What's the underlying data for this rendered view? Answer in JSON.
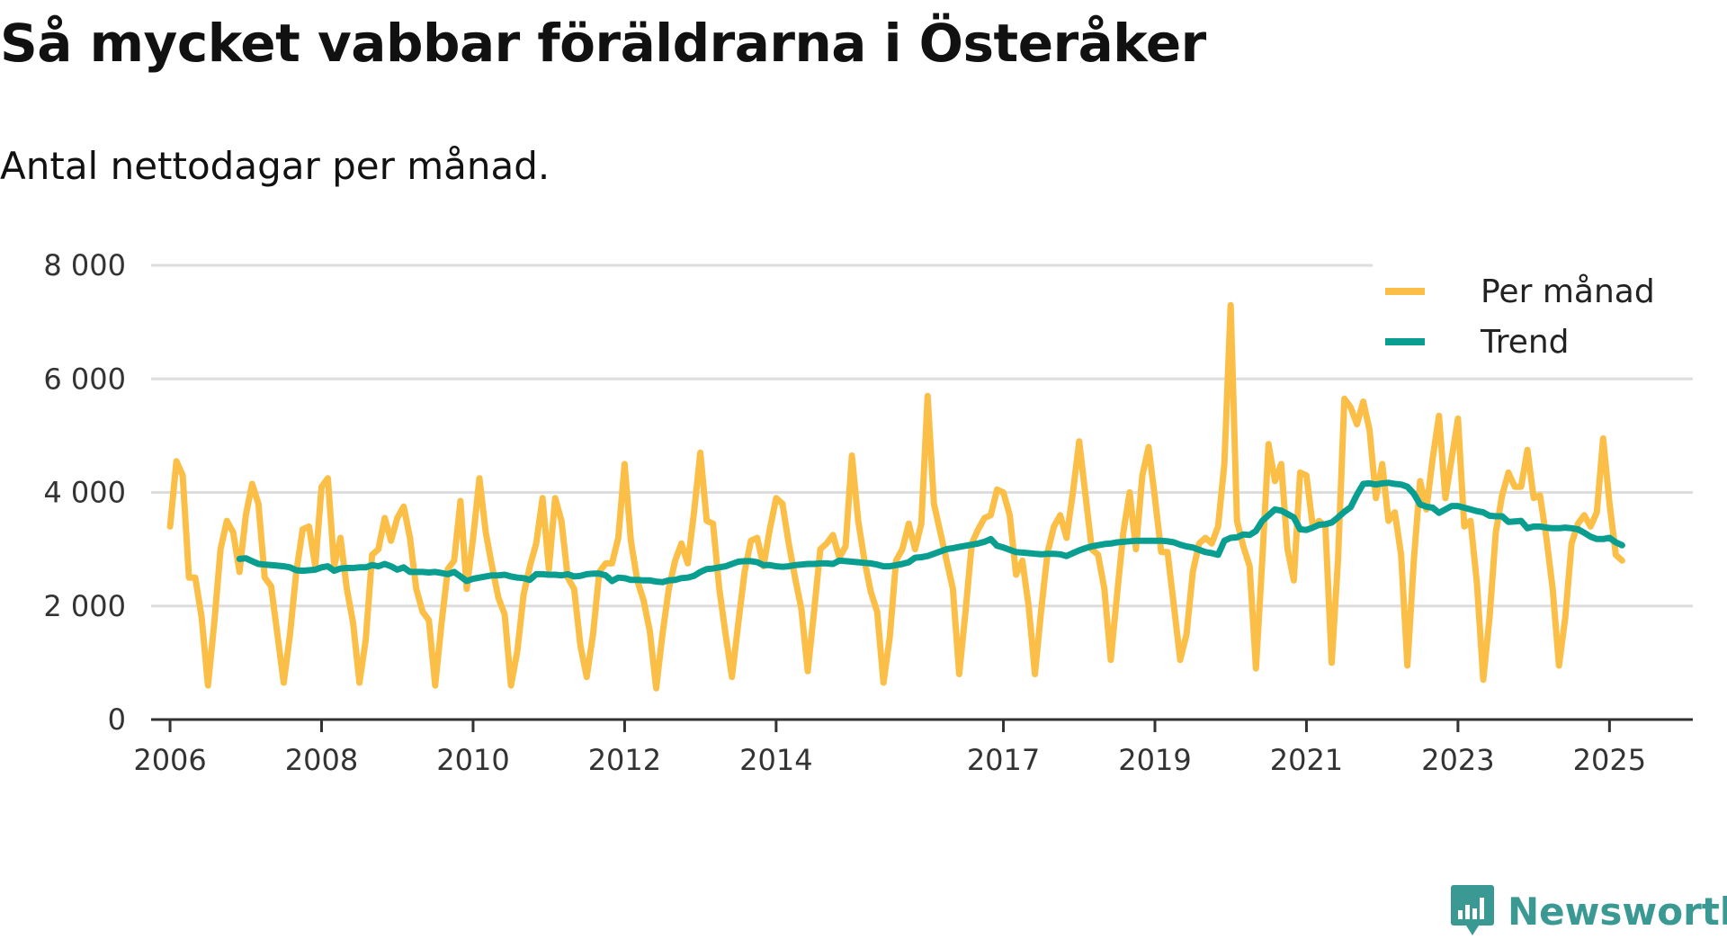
{
  "header": {
    "title": "Så mycket vabbar föräldrarna i Österåker",
    "subtitle": "Antal nettodagar per månad."
  },
  "branding": {
    "name": "Newsworthy",
    "logo_icon": "bar-chart-bubble-icon",
    "color": "#3a9a93"
  },
  "colors": {
    "per_month": "#fbbf47",
    "trend": "#0a9e91",
    "grid": "#dddddd",
    "axis": "#333333"
  },
  "chart_data": {
    "type": "line",
    "title": "Så mycket vabbar föräldrarna i Österåker",
    "subtitle": "Antal nettodagar per månad.",
    "xlabel": "",
    "ylabel": "",
    "x_unit": "year (decimal, monthly points)",
    "xlim": [
      2005.75,
      2026.1
    ],
    "ylim": [
      0,
      8000
    ],
    "y_ticks": [
      0,
      2000,
      4000,
      6000,
      8000
    ],
    "y_tick_labels": [
      "0",
      "2 000",
      "4 000",
      "6 000",
      "8 000"
    ],
    "x_ticks": [
      2006,
      2008,
      2010,
      2012,
      2014,
      2017,
      2019,
      2021,
      2023,
      2025
    ],
    "x_tick_labels": [
      "2006",
      "2008",
      "2010",
      "2012",
      "2014",
      "2017",
      "2019",
      "2021",
      "2023",
      "2025"
    ],
    "x_start": 2006.0,
    "grid": true,
    "legend_position": "top-right",
    "series": [
      {
        "name": "Per månad",
        "values": [
          3400,
          4550,
          4300,
          2500,
          2500,
          1800,
          600,
          1700,
          3000,
          3500,
          3300,
          2600,
          3600,
          4150,
          3800,
          2500,
          2350,
          1500,
          650,
          1500,
          2600,
          3350,
          3400,
          2700,
          4100,
          4250,
          2700,
          3200,
          2300,
          1700,
          650,
          1400,
          2900,
          3000,
          3550,
          3150,
          3550,
          3750,
          3200,
          2300,
          1900,
          1750,
          600,
          1700,
          2650,
          2800,
          3850,
          2300,
          3200,
          4250,
          3300,
          2700,
          2150,
          1850,
          600,
          1200,
          2200,
          2700,
          3100,
          3900,
          2650,
          3900,
          3500,
          2500,
          2300,
          1300,
          750,
          1500,
          2600,
          2750,
          2750,
          3200,
          4500,
          3150,
          2450,
          2100,
          1550,
          550,
          1500,
          2300,
          2800,
          3100,
          2750,
          3650,
          4700,
          3500,
          3450,
          2300,
          1500,
          750,
          1700,
          2600,
          3150,
          3200,
          2700,
          3350,
          3900,
          3800,
          3100,
          2500,
          1950,
          850,
          1900,
          3000,
          3100,
          3250,
          2850,
          3050,
          4650,
          3500,
          2800,
          2250,
          1900,
          650,
          1450,
          2800,
          3000,
          3450,
          3000,
          3450,
          5700,
          3800,
          3300,
          2800,
          2300,
          800,
          1900,
          3100,
          3350,
          3550,
          3600,
          4050,
          4000,
          3600,
          2550,
          2800,
          2000,
          800,
          1950,
          2950,
          3400,
          3600,
          3200,
          4000,
          4900,
          3950,
          3000,
          2900,
          2300,
          1050,
          2200,
          3300,
          4000,
          3000,
          4300,
          4800,
          3900,
          2950,
          2950,
          2000,
          1050,
          1500,
          2600,
          3100,
          3200,
          3100,
          3400,
          4500,
          7300,
          3500,
          3050,
          2700,
          900,
          2800,
          4850,
          4200,
          4500,
          3000,
          2450,
          4350,
          4300,
          3400,
          3500,
          3400,
          1000,
          2800,
          5650,
          5500,
          5200,
          5600,
          5100,
          3900,
          4500,
          3500,
          3650,
          2900,
          950,
          2800,
          4200,
          3700,
          4600,
          5350,
          3900,
          4600,
          5300,
          3400,
          3500,
          2400,
          700,
          1800,
          3300,
          3950,
          4350,
          4100,
          4100,
          4750,
          3900,
          3950,
          3200,
          2300,
          950,
          1800,
          3100,
          3450,
          3600,
          3400,
          3650,
          4950,
          3800,
          2900,
          2800
        ]
      },
      {
        "name": "Trend",
        "start_index": 11,
        "values": [
          2830,
          2840,
          2790,
          2740,
          2730,
          2720,
          2710,
          2700,
          2680,
          2630,
          2620,
          2630,
          2640,
          2680,
          2700,
          2620,
          2660,
          2670,
          2670,
          2680,
          2680,
          2720,
          2700,
          2740,
          2700,
          2640,
          2680,
          2600,
          2600,
          2600,
          2590,
          2600,
          2580,
          2560,
          2600,
          2520,
          2440,
          2480,
          2500,
          2520,
          2540,
          2540,
          2550,
          2520,
          2500,
          2490,
          2460,
          2560,
          2560,
          2550,
          2550,
          2540,
          2560,
          2520,
          2530,
          2560,
          2570,
          2570,
          2540,
          2440,
          2500,
          2490,
          2460,
          2460,
          2450,
          2450,
          2430,
          2420,
          2450,
          2460,
          2490,
          2500,
          2530,
          2600,
          2650,
          2660,
          2680,
          2700,
          2740,
          2780,
          2790,
          2790,
          2770,
          2720,
          2720,
          2700,
          2690,
          2700,
          2720,
          2730,
          2740,
          2740,
          2750,
          2750,
          2740,
          2800,
          2790,
          2780,
          2770,
          2760,
          2750,
          2730,
          2700,
          2700,
          2720,
          2740,
          2770,
          2850,
          2860,
          2880,
          2920,
          2960,
          3000,
          3020,
          3040,
          3060,
          3080,
          3100,
          3130,
          3180,
          3060,
          3030,
          2990,
          2950,
          2940,
          2930,
          2920,
          2910,
          2920,
          2920,
          2910,
          2880,
          2930,
          2980,
          3020,
          3050,
          3070,
          3090,
          3100,
          3120,
          3130,
          3140,
          3150,
          3150,
          3150,
          3150,
          3150,
          3140,
          3120,
          3080,
          3050,
          3030,
          2990,
          2950,
          2930,
          2900,
          3150,
          3200,
          3210,
          3260,
          3250,
          3320,
          3500,
          3600,
          3700,
          3680,
          3620,
          3560,
          3350,
          3340,
          3380,
          3430,
          3440,
          3470,
          3560,
          3660,
          3740,
          3960,
          4150,
          4160,
          4140,
          4160,
          4170,
          4150,
          4140,
          4100,
          3980,
          3790,
          3750,
          3730,
          3640,
          3700,
          3760,
          3760,
          3730,
          3700,
          3670,
          3650,
          3590,
          3580,
          3580,
          3480,
          3490,
          3500,
          3370,
          3400,
          3400,
          3380,
          3370,
          3370,
          3380,
          3370,
          3350,
          3290,
          3220,
          3180,
          3180,
          3200,
          3120,
          3070
        ]
      }
    ]
  }
}
